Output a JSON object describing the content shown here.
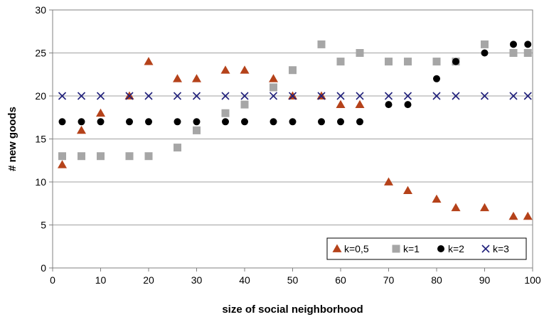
{
  "chart_data": {
    "type": "scatter",
    "xlabel": "size of social neighborhood",
    "ylabel": "# new goods",
    "xlim": [
      0,
      100
    ],
    "ylim": [
      0,
      30
    ],
    "x_ticks": [
      "0",
      "10",
      "20",
      "30",
      "40",
      "50",
      "60",
      "70",
      "80",
      "90",
      "100"
    ],
    "y_ticks": [
      "0",
      "5",
      "10",
      "15",
      "20",
      "25",
      "30"
    ],
    "grid": "horizontal",
    "legend_position": "bottom-right",
    "series": [
      {
        "name": "k=0,5",
        "marker": "triangle",
        "color": "#b5421a",
        "points": [
          [
            2,
            12
          ],
          [
            6,
            16
          ],
          [
            10,
            18
          ],
          [
            16,
            20
          ],
          [
            20,
            24
          ],
          [
            26,
            22
          ],
          [
            30,
            22
          ],
          [
            36,
            23
          ],
          [
            40,
            23
          ],
          [
            46,
            22
          ],
          [
            50,
            20
          ],
          [
            56,
            20
          ],
          [
            60,
            19
          ],
          [
            64,
            19
          ],
          [
            70,
            10
          ],
          [
            74,
            9
          ],
          [
            80,
            8
          ],
          [
            84,
            7
          ],
          [
            90,
            7
          ],
          [
            96,
            6
          ],
          [
            99,
            6
          ]
        ]
      },
      {
        "name": "k=1",
        "marker": "square",
        "color": "#a6a6a6",
        "points": [
          [
            2,
            13
          ],
          [
            6,
            13
          ],
          [
            10,
            13
          ],
          [
            16,
            13
          ],
          [
            20,
            13
          ],
          [
            26,
            14
          ],
          [
            30,
            16
          ],
          [
            36,
            18
          ],
          [
            40,
            19
          ],
          [
            46,
            21
          ],
          [
            50,
            23
          ],
          [
            56,
            26
          ],
          [
            60,
            24
          ],
          [
            64,
            25
          ],
          [
            70,
            24
          ],
          [
            74,
            24
          ],
          [
            80,
            24
          ],
          [
            84,
            24
          ],
          [
            90,
            26
          ],
          [
            96,
            25
          ],
          [
            99,
            25
          ]
        ]
      },
      {
        "name": "k=2",
        "marker": "circle",
        "color": "#000000",
        "points": [
          [
            2,
            17
          ],
          [
            6,
            17
          ],
          [
            10,
            17
          ],
          [
            16,
            17
          ],
          [
            20,
            17
          ],
          [
            26,
            17
          ],
          [
            30,
            17
          ],
          [
            36,
            17
          ],
          [
            40,
            17
          ],
          [
            46,
            17
          ],
          [
            50,
            17
          ],
          [
            56,
            17
          ],
          [
            60,
            17
          ],
          [
            64,
            17
          ],
          [
            70,
            19
          ],
          [
            74,
            19
          ],
          [
            80,
            22
          ],
          [
            84,
            24
          ],
          [
            90,
            25
          ],
          [
            96,
            26
          ],
          [
            99,
            26
          ]
        ]
      },
      {
        "name": "k=3",
        "marker": "x",
        "color": "#1f1f7a",
        "points": [
          [
            2,
            20
          ],
          [
            6,
            20
          ],
          [
            10,
            20
          ],
          [
            16,
            20
          ],
          [
            20,
            20
          ],
          [
            26,
            20
          ],
          [
            30,
            20
          ],
          [
            36,
            20
          ],
          [
            40,
            20
          ],
          [
            46,
            20
          ],
          [
            50,
            20
          ],
          [
            56,
            20
          ],
          [
            60,
            20
          ],
          [
            64,
            20
          ],
          [
            70,
            20
          ],
          [
            74,
            20
          ],
          [
            80,
            20
          ],
          [
            84,
            20
          ],
          [
            90,
            20
          ],
          [
            96,
            20
          ],
          [
            99,
            20
          ]
        ]
      }
    ]
  }
}
